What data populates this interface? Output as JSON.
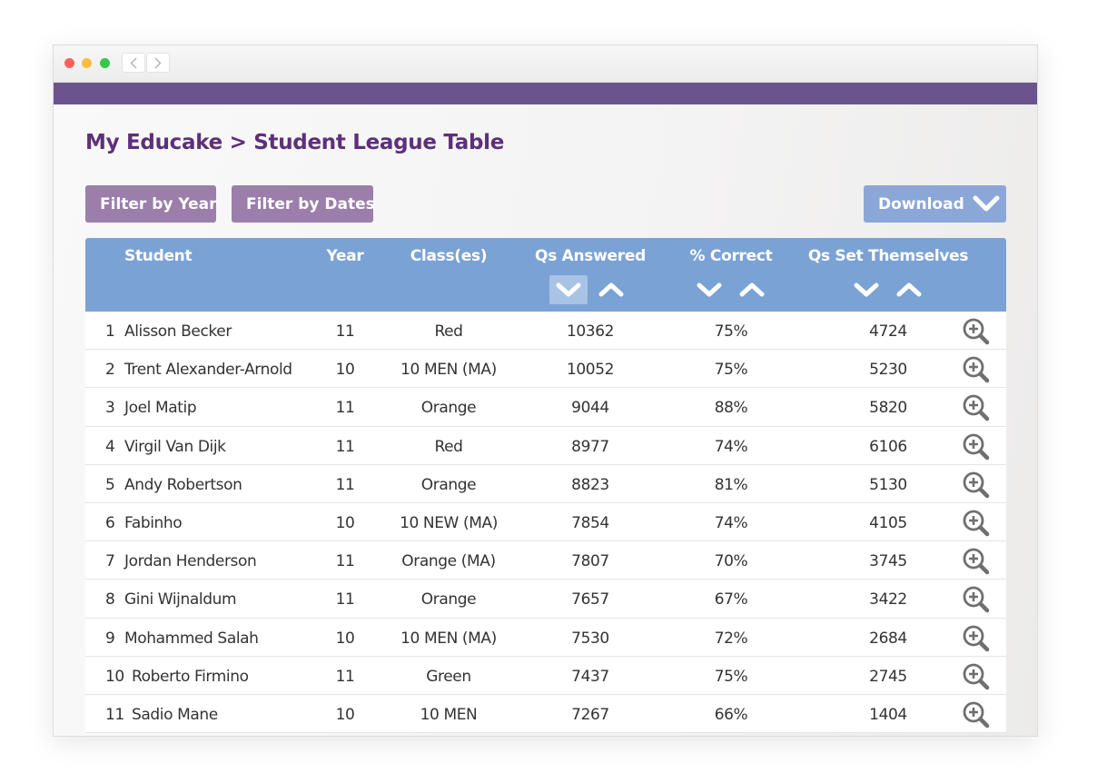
{
  "page": {
    "title": "My Educake > Student League Table"
  },
  "toolbar": {
    "filter_year": "Filter by Year",
    "filter_dates": "Filter by Dates",
    "download": "Download"
  },
  "colors": {
    "brand_purple": "#6b538c",
    "title_purple": "#5e2f7a",
    "filter_button": "#9c7eab",
    "download_button": "#8ba7d8",
    "table_header": "#7ba2d5"
  },
  "table": {
    "headers": {
      "student": "Student",
      "year": "Year",
      "classes": "Class(es)",
      "answered": "Qs Answered",
      "correct": "% Correct",
      "set": "Qs Set Themselves"
    },
    "active_sort": "answered-descending",
    "rows": [
      {
        "rank": "1",
        "name": "Alisson Becker",
        "year": "11",
        "class": "Red",
        "answered": "10362",
        "correct": "75%",
        "set": "4724"
      },
      {
        "rank": "2",
        "name": "Trent Alexander-Arnold",
        "year": "10",
        "class": "10 MEN (MA)",
        "answered": "10052",
        "correct": "75%",
        "set": "5230"
      },
      {
        "rank": "3",
        "name": "Joel Matip",
        "year": "11",
        "class": "Orange",
        "answered": "9044",
        "correct": "88%",
        "set": "5820"
      },
      {
        "rank": "4",
        "name": "Virgil Van Dijk",
        "year": "11",
        "class": "Red",
        "answered": "8977",
        "correct": "74%",
        "set": "6106"
      },
      {
        "rank": "5",
        "name": "Andy Robertson",
        "year": "11",
        "class": "Orange",
        "answered": "8823",
        "correct": "81%",
        "set": "5130"
      },
      {
        "rank": "6",
        "name": "Fabinho",
        "year": "10",
        "class": "10 NEW (MA)",
        "answered": "7854",
        "correct": "74%",
        "set": "4105"
      },
      {
        "rank": "7",
        "name": "Jordan Henderson",
        "year": "11",
        "class": "Orange (MA)",
        "answered": "7807",
        "correct": "70%",
        "set": "3745"
      },
      {
        "rank": "8",
        "name": "Gini Wijnaldum",
        "year": "11",
        "class": "Orange",
        "answered": "7657",
        "correct": "67%",
        "set": "3422"
      },
      {
        "rank": "9",
        "name": "Mohammed Salah",
        "year": "10",
        "class": "10 MEN (MA)",
        "answered": "7530",
        "correct": "72%",
        "set": "2684"
      },
      {
        "rank": "10",
        "name": "Roberto Firmino",
        "year": "11",
        "class": "Green",
        "answered": "7437",
        "correct": "75%",
        "set": "2745"
      },
      {
        "rank": "11",
        "name": "Sadio Mane",
        "year": "10",
        "class": "10 MEN",
        "answered": "7267",
        "correct": "66%",
        "set": "1404"
      }
    ]
  }
}
